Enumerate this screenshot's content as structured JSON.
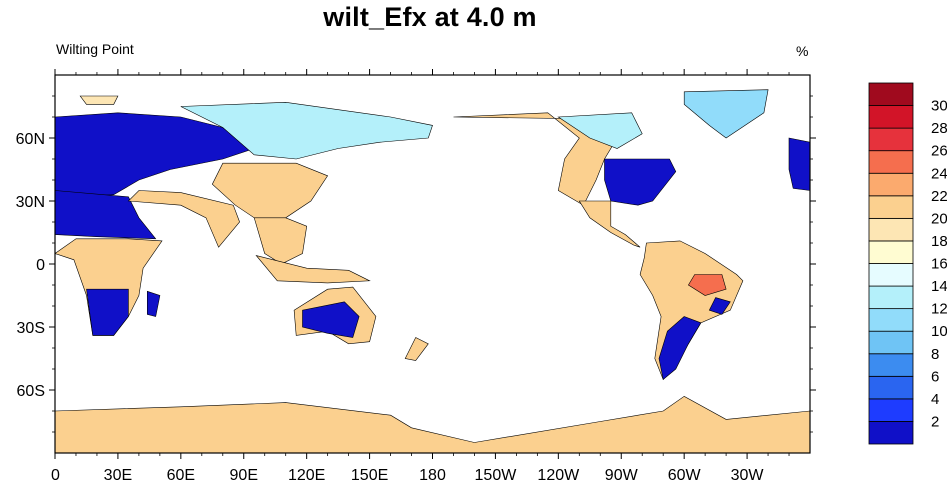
{
  "title": "wilt_Efx at 4.0 m",
  "subtitle": "Wilting Point",
  "units": "%",
  "map": {
    "projection": "cylindrical equidistant",
    "center_longitude": 180,
    "longitude_range": [
      0,
      360
    ],
    "latitude_range": [
      -90,
      90
    ],
    "ocean_color": "#ffffff",
    "coastline_color": "#000000"
  },
  "x_ticks": [
    {
      "lon": 0,
      "label": "0"
    },
    {
      "lon": 30,
      "label": "30E"
    },
    {
      "lon": 60,
      "label": "60E"
    },
    {
      "lon": 90,
      "label": "90E"
    },
    {
      "lon": 120,
      "label": "120E"
    },
    {
      "lon": 150,
      "label": "150E"
    },
    {
      "lon": 180,
      "label": "180"
    },
    {
      "lon": 210,
      "label": "150W"
    },
    {
      "lon": 240,
      "label": "120W"
    },
    {
      "lon": 270,
      "label": "90W"
    },
    {
      "lon": 300,
      "label": "60W"
    },
    {
      "lon": 330,
      "label": "30W"
    }
  ],
  "y_ticks": [
    {
      "lat": 60,
      "label": "60N"
    },
    {
      "lat": 30,
      "label": "30N"
    },
    {
      "lat": 0,
      "label": "0"
    },
    {
      "lat": -30,
      "label": "30S"
    },
    {
      "lat": -60,
      "label": "60S"
    }
  ],
  "colorbar": {
    "colors": [
      "#1010c8",
      "#1e3cff",
      "#2a65f0",
      "#3c8cf0",
      "#6fc4f5",
      "#91dcfa",
      "#b4f0fa",
      "#e6fcff",
      "#fffcd2",
      "#fde6b4",
      "#fbd08f",
      "#fbaa6e",
      "#f56e4e",
      "#e6323c",
      "#d21428",
      "#a00a1e"
    ],
    "labels": [
      "2",
      "4",
      "6",
      "8",
      "10",
      "12",
      "14",
      "16",
      "18",
      "20",
      "22",
      "24",
      "26",
      "28",
      "30"
    ]
  },
  "regions": [
    {
      "name": "north-america-dry-west",
      "color": "#fbd08f",
      "points": [
        [
          190,
          70
        ],
        [
          235,
          72
        ],
        [
          250,
          60
        ],
        [
          243,
          50
        ],
        [
          240,
          35
        ],
        [
          252,
          28
        ],
        [
          258,
          40
        ],
        [
          262,
          50
        ],
        [
          268,
          60
        ],
        [
          262,
          69
        ]
      ]
    },
    {
      "name": "canada-arctic",
      "color": "#b4f0fa",
      "points": [
        [
          240,
          70
        ],
        [
          275,
          72
        ],
        [
          280,
          62
        ],
        [
          268,
          55
        ],
        [
          255,
          60
        ]
      ]
    },
    {
      "name": "greenland",
      "color": "#91dcfa",
      "points": [
        [
          300,
          82
        ],
        [
          340,
          83
        ],
        [
          338,
          72
        ],
        [
          320,
          60
        ],
        [
          312,
          66
        ],
        [
          300,
          76
        ]
      ]
    },
    {
      "name": "eastern-usa",
      "color": "#1010c8",
      "points": [
        [
          262,
          50
        ],
        [
          293,
          50
        ],
        [
          296,
          44
        ],
        [
          285,
          30
        ],
        [
          278,
          28
        ],
        [
          265,
          30
        ],
        [
          262,
          40
        ]
      ]
    },
    {
      "name": "mexico-central-america",
      "color": "#fbd08f",
      "points": [
        [
          250,
          30
        ],
        [
          265,
          30
        ],
        [
          265,
          18
        ],
        [
          272,
          14
        ],
        [
          279,
          8
        ],
        [
          276,
          9
        ],
        [
          265,
          15
        ],
        [
          255,
          22
        ]
      ]
    },
    {
      "name": "south-america",
      "color": "#fbd08f",
      "points": [
        [
          282,
          10
        ],
        [
          298,
          11
        ],
        [
          310,
          5
        ],
        [
          325,
          -5
        ],
        [
          328,
          -8
        ],
        [
          322,
          -22
        ],
        [
          308,
          -28
        ],
        [
          302,
          -38
        ],
        [
          295,
          -50
        ],
        [
          290,
          -55
        ],
        [
          286,
          -45
        ],
        [
          289,
          -25
        ],
        [
          285,
          -15
        ],
        [
          279,
          -5
        ],
        [
          281,
          3
        ]
      ]
    },
    {
      "name": "brazil-wet",
      "color": "#f56e4e",
      "points": [
        [
          305,
          -5
        ],
        [
          318,
          -5
        ],
        [
          320,
          -12
        ],
        [
          310,
          -15
        ],
        [
          302,
          -10
        ]
      ]
    },
    {
      "name": "south-america-low",
      "color": "#1010c8",
      "points": [
        [
          300,
          -25
        ],
        [
          308,
          -28
        ],
        [
          302,
          -38
        ],
        [
          296,
          -50
        ],
        [
          290,
          -55
        ],
        [
          288,
          -45
        ],
        [
          292,
          -32
        ]
      ]
    },
    {
      "name": "south-america-east",
      "color": "#1010c8",
      "points": [
        [
          315,
          -16
        ],
        [
          322,
          -18
        ],
        [
          318,
          -24
        ],
        [
          312,
          -22
        ]
      ]
    },
    {
      "name": "europe-russia-low",
      "color": "#1010c8",
      "points": [
        [
          0,
          70
        ],
        [
          30,
          72
        ],
        [
          60,
          70
        ],
        [
          80,
          65
        ],
        [
          95,
          55
        ],
        [
          80,
          50
        ],
        [
          55,
          45
        ],
        [
          40,
          40
        ],
        [
          28,
          33
        ],
        [
          10,
          32
        ],
        [
          0,
          35
        ]
      ]
    },
    {
      "name": "western-europe",
      "color": "#1010c8",
      "points": [
        [
          350,
          60
        ],
        [
          360,
          58
        ],
        [
          360,
          35
        ],
        [
          352,
          36
        ],
        [
          350,
          45
        ]
      ]
    },
    {
      "name": "sahara",
      "color": "#1010c8",
      "points": [
        [
          0,
          35
        ],
        [
          35,
          32
        ],
        [
          40,
          22
        ],
        [
          48,
          12
        ],
        [
          20,
          13
        ],
        [
          0,
          14
        ]
      ]
    },
    {
      "name": "siberia",
      "color": "#b4f0fa",
      "points": [
        [
          60,
          75
        ],
        [
          110,
          77
        ],
        [
          160,
          70
        ],
        [
          180,
          66
        ],
        [
          178,
          60
        ],
        [
          155,
          58
        ],
        [
          135,
          55
        ],
        [
          115,
          50
        ],
        [
          95,
          52
        ],
        [
          80,
          65
        ]
      ]
    },
    {
      "name": "central-asia-dry",
      "color": "#fbd08f",
      "points": [
        [
          80,
          48
        ],
        [
          115,
          48
        ],
        [
          130,
          42
        ],
        [
          122,
          30
        ],
        [
          110,
          22
        ],
        [
          98,
          20
        ],
        [
          86,
          28
        ],
        [
          75,
          38
        ]
      ]
    },
    {
      "name": "india-arabia",
      "color": "#fbd08f",
      "points": [
        [
          35,
          30
        ],
        [
          60,
          28
        ],
        [
          72,
          22
        ],
        [
          78,
          8
        ],
        [
          88,
          20
        ],
        [
          85,
          28
        ],
        [
          60,
          34
        ],
        [
          40,
          35
        ]
      ]
    },
    {
      "name": "southeast-asia",
      "color": "#fbd08f",
      "points": [
        [
          95,
          22
        ],
        [
          110,
          22
        ],
        [
          120,
          18
        ],
        [
          118,
          5
        ],
        [
          108,
          0
        ],
        [
          100,
          5
        ]
      ]
    },
    {
      "name": "africa",
      "color": "#fbd08f",
      "points": [
        [
          10,
          12
        ],
        [
          35,
          12
        ],
        [
          51,
          11
        ],
        [
          42,
          -2
        ],
        [
          40,
          -15
        ],
        [
          35,
          -25
        ],
        [
          28,
          -34
        ],
        [
          18,
          -34
        ],
        [
          15,
          -15
        ],
        [
          9,
          2
        ],
        [
          0,
          5
        ]
      ]
    },
    {
      "name": "africa-south-low",
      "color": "#1010c8",
      "points": [
        [
          15,
          -12
        ],
        [
          35,
          -12
        ],
        [
          35,
          -25
        ],
        [
          28,
          -34
        ],
        [
          18,
          -34
        ]
      ]
    },
    {
      "name": "madagascar",
      "color": "#1010c8",
      "points": [
        [
          44,
          -13
        ],
        [
          50,
          -15
        ],
        [
          48,
          -25
        ],
        [
          44,
          -24
        ]
      ]
    },
    {
      "name": "australia",
      "color": "#fbd08f",
      "points": [
        [
          114,
          -22
        ],
        [
          130,
          -12
        ],
        [
          142,
          -11
        ],
        [
          153,
          -25
        ],
        [
          150,
          -37
        ],
        [
          140,
          -38
        ],
        [
          130,
          -32
        ],
        [
          115,
          -34
        ]
      ]
    },
    {
      "name": "australia-low",
      "color": "#1010c8",
      "points": [
        [
          118,
          -22
        ],
        [
          138,
          -18
        ],
        [
          145,
          -25
        ],
        [
          142,
          -35
        ],
        [
          130,
          -33
        ],
        [
          118,
          -30
        ]
      ]
    },
    {
      "name": "new-zealand",
      "color": "#fbd08f",
      "points": [
        [
          172,
          -35
        ],
        [
          178,
          -38
        ],
        [
          172,
          -46
        ],
        [
          167,
          -45
        ]
      ]
    },
    {
      "name": "indonesia",
      "color": "#fbd08f",
      "points": [
        [
          96,
          4
        ],
        [
          120,
          -2
        ],
        [
          140,
          -3
        ],
        [
          150,
          -8
        ],
        [
          130,
          -9
        ],
        [
          106,
          -8
        ]
      ]
    },
    {
      "name": "antarctica",
      "color": "#fbd08f",
      "points": [
        [
          0,
          -70
        ],
        [
          60,
          -68
        ],
        [
          110,
          -66
        ],
        [
          160,
          -72
        ],
        [
          170,
          -78
        ],
        [
          200,
          -85
        ],
        [
          260,
          -75
        ],
        [
          290,
          -70
        ],
        [
          300,
          -63
        ],
        [
          320,
          -74
        ],
        [
          360,
          -70
        ],
        [
          360,
          -90
        ],
        [
          0,
          -90
        ]
      ]
    },
    {
      "name": "russia-arctic",
      "color": "#fde6b4",
      "points": [
        [
          12,
          80
        ],
        [
          30,
          80
        ],
        [
          28,
          76
        ],
        [
          15,
          76
        ]
      ]
    }
  ]
}
